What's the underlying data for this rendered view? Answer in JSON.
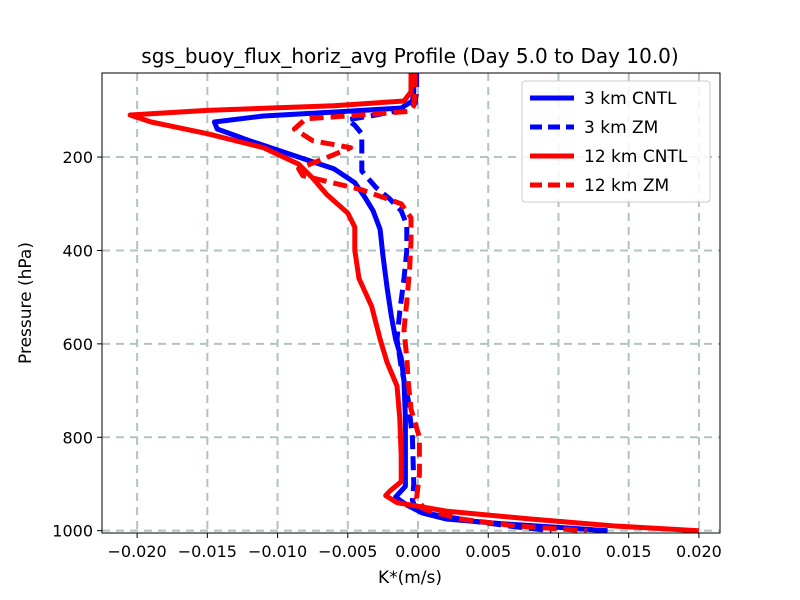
{
  "chart_data": {
    "type": "line",
    "title": "sgs_buoy_flux_horiz_avg Profile (Day 5.0 to Day 10.0)",
    "xlabel": "K*(m/s)",
    "ylabel": "Pressure (hPa)",
    "xlim": [
      -0.0225,
      0.0215
    ],
    "ylim": [
      1005,
      20
    ],
    "y_inverted": true,
    "grid": true,
    "legend_position": "top-right",
    "x_ticks": [
      -0.02,
      -0.015,
      -0.01,
      -0.005,
      0.0,
      0.005,
      0.01,
      0.015,
      0.02
    ],
    "x_tick_labels": [
      "−0.020",
      "−0.015",
      "−0.010",
      "−0.005",
      "0.000",
      "0.005",
      "0.010",
      "0.015",
      "0.020"
    ],
    "y_ticks": [
      200,
      400,
      600,
      800,
      1000
    ],
    "y_tick_labels": [
      "200",
      "400",
      "600",
      "800",
      "1000"
    ],
    "series": [
      {
        "name": "3 km CNTL",
        "color": "#0000ff",
        "dash": "solid",
        "points": [
          [
            -0.0003,
            20
          ],
          [
            -0.0003,
            60
          ],
          [
            -0.0004,
            80
          ],
          [
            -0.0012,
            95
          ],
          [
            -0.005,
            102
          ],
          [
            -0.011,
            112
          ],
          [
            -0.0145,
            125
          ],
          [
            -0.0143,
            140
          ],
          [
            -0.012,
            165
          ],
          [
            -0.009,
            195
          ],
          [
            -0.006,
            225
          ],
          [
            -0.0045,
            255
          ],
          [
            -0.0038,
            285
          ],
          [
            -0.0032,
            315
          ],
          [
            -0.0027,
            355
          ],
          [
            -0.0025,
            410
          ],
          [
            -0.0022,
            480
          ],
          [
            -0.0019,
            540
          ],
          [
            -0.0016,
            590
          ],
          [
            -0.0012,
            630
          ],
          [
            -0.001,
            680
          ],
          [
            -0.0009,
            760
          ],
          [
            -0.0009,
            840
          ],
          [
            -0.0009,
            905
          ],
          [
            -0.0013,
            918
          ],
          [
            -0.0016,
            928
          ],
          [
            -0.0008,
            945
          ],
          [
            0.0003,
            962
          ],
          [
            0.002,
            975
          ],
          [
            0.006,
            985
          ],
          [
            0.01,
            993
          ],
          [
            0.0135,
            1000
          ]
        ]
      },
      {
        "name": "3 km ZM",
        "color": "#0000ff",
        "dash": "dashed",
        "points": [
          [
            -0.0001,
            20
          ],
          [
            -0.0001,
            60
          ],
          [
            -0.0002,
            85
          ],
          [
            -0.001,
            98
          ],
          [
            -0.003,
            110
          ],
          [
            -0.005,
            120
          ],
          [
            -0.0045,
            132
          ],
          [
            -0.004,
            150
          ],
          [
            -0.004,
            185
          ],
          [
            -0.004,
            230
          ],
          [
            -0.003,
            265
          ],
          [
            -0.002,
            290
          ],
          [
            -0.0012,
            315
          ],
          [
            -0.0008,
            345
          ],
          [
            -0.0008,
            400
          ],
          [
            -0.001,
            460
          ],
          [
            -0.0013,
            530
          ],
          [
            -0.0015,
            590
          ],
          [
            -0.0012,
            650
          ],
          [
            -0.0007,
            720
          ],
          [
            -0.0004,
            800
          ],
          [
            -0.0003,
            900
          ],
          [
            -0.0004,
            935
          ],
          [
            -0.0002,
            950
          ],
          [
            0.001,
            965
          ],
          [
            0.004,
            980
          ],
          [
            0.007,
            992
          ],
          [
            0.0095,
            1000
          ]
        ]
      },
      {
        "name": "12 km CNTL",
        "color": "#ff0000",
        "dash": "solid",
        "points": [
          [
            -0.0005,
            20
          ],
          [
            -0.0005,
            60
          ],
          [
            -0.001,
            80
          ],
          [
            -0.006,
            90
          ],
          [
            -0.015,
            100
          ],
          [
            -0.0205,
            110
          ],
          [
            -0.019,
            125
          ],
          [
            -0.015,
            150
          ],
          [
            -0.011,
            180
          ],
          [
            -0.0085,
            215
          ],
          [
            -0.0075,
            245
          ],
          [
            -0.0065,
            280
          ],
          [
            -0.005,
            320
          ],
          [
            -0.0045,
            350
          ],
          [
            -0.0045,
            400
          ],
          [
            -0.0042,
            460
          ],
          [
            -0.0033,
            520
          ],
          [
            -0.0027,
            590
          ],
          [
            -0.0022,
            640
          ],
          [
            -0.0015,
            690
          ],
          [
            -0.0013,
            760
          ],
          [
            -0.0012,
            840
          ],
          [
            -0.0012,
            895
          ],
          [
            -0.002,
            915
          ],
          [
            -0.0023,
            925
          ],
          [
            -0.0015,
            940
          ],
          [
            0.002,
            958
          ],
          [
            0.008,
            975
          ],
          [
            0.014,
            990
          ],
          [
            0.02,
            1000
          ]
        ]
      },
      {
        "name": "12 km ZM",
        "color": "#ff0000",
        "dash": "dashed",
        "points": [
          [
            -0.0002,
            20
          ],
          [
            -0.0002,
            60
          ],
          [
            -0.0003,
            90
          ],
          [
            -0.0006,
            102
          ],
          [
            -0.004,
            110
          ],
          [
            -0.008,
            118
          ],
          [
            -0.0088,
            140
          ],
          [
            -0.0075,
            165
          ],
          [
            -0.0048,
            180
          ],
          [
            -0.006,
            195
          ],
          [
            -0.0085,
            225
          ],
          [
            -0.0082,
            240
          ],
          [
            -0.004,
            270
          ],
          [
            -0.0012,
            300
          ],
          [
            -0.0005,
            330
          ],
          [
            -0.0005,
            380
          ],
          [
            -0.0006,
            440
          ],
          [
            -0.0008,
            510
          ],
          [
            -0.001,
            570
          ],
          [
            -0.0008,
            630
          ],
          [
            -0.0007,
            680
          ],
          [
            -0.0005,
            740
          ],
          [
            0.0001,
            800
          ],
          [
            0.0001,
            880
          ],
          [
            -0.0001,
            930
          ],
          [
            0.0005,
            955
          ],
          [
            0.003,
            975
          ],
          [
            0.007,
            990
          ],
          [
            0.012,
            1000
          ]
        ]
      }
    ]
  }
}
